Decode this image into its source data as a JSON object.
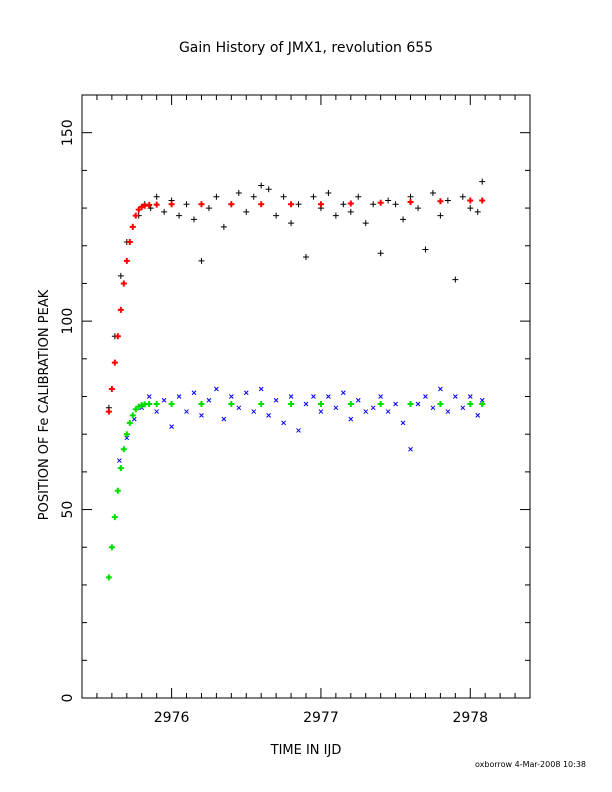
{
  "chart_data": {
    "type": "scatter",
    "title": "Gain History of JMX1, revolution 655",
    "xlabel": "TIME IN IJD",
    "ylabel": "POSITION OF Fe CALIBRATION PEAK",
    "xlim": [
      2975.4,
      2978.4
    ],
    "ylim": [
      0,
      160
    ],
    "xticks": [
      "2976",
      "2977",
      "2978"
    ],
    "yticks": [
      "0",
      "50",
      "100",
      "150"
    ],
    "grid": false,
    "legend": "none",
    "series": [
      {
        "marker": "plus",
        "color": "#000000",
        "x": [
          2975.58,
          2975.62,
          2975.66,
          2975.7,
          2975.74,
          2975.78,
          2975.82,
          2975.86,
          2975.9,
          2975.95,
          2976.0,
          2976.05,
          2976.1,
          2976.15,
          2976.2,
          2976.25,
          2976.3,
          2976.35,
          2976.4,
          2976.45,
          2976.5,
          2976.55,
          2976.6,
          2976.65,
          2976.7,
          2976.75,
          2976.8,
          2976.85,
          2976.9,
          2976.95,
          2977.0,
          2977.05,
          2977.1,
          2977.15,
          2977.2,
          2977.25,
          2977.3,
          2977.35,
          2977.4,
          2977.45,
          2977.5,
          2977.55,
          2977.6,
          2977.65,
          2977.7,
          2977.75,
          2977.8,
          2977.85,
          2977.9,
          2977.95,
          2978.0,
          2978.05,
          2978.08
        ],
        "y": [
          77,
          96,
          112,
          121,
          125,
          128,
          131,
          130,
          133,
          129,
          132,
          128,
          131,
          127,
          116,
          130,
          133,
          125,
          131,
          134,
          129,
          133,
          136,
          135,
          128,
          133,
          126,
          131,
          117,
          133,
          130,
          134,
          128,
          131,
          129,
          133,
          126,
          131,
          118,
          132,
          131,
          127,
          133,
          130,
          119,
          134,
          128,
          132,
          111,
          133,
          130,
          129,
          137
        ]
      },
      {
        "marker": "plus",
        "color": "#ff0000",
        "x": [
          2975.58,
          2975.6,
          2975.62,
          2975.64,
          2975.66,
          2975.68,
          2975.7,
          2975.72,
          2975.74,
          2975.76,
          2975.78,
          2975.8,
          2975.82,
          2975.85,
          2975.9,
          2976.0,
          2976.2,
          2976.4,
          2976.6,
          2976.8,
          2977.0,
          2977.2,
          2977.4,
          2977.6,
          2977.8,
          2978.0,
          2978.08
        ],
        "y": [
          76,
          82,
          89,
          96,
          103,
          110,
          116,
          121,
          125,
          128,
          129.6,
          130.3,
          130.6,
          130.8,
          130.9,
          131,
          131,
          131,
          131,
          131,
          131,
          131.2,
          131.4,
          131.6,
          131.8,
          132,
          132
        ]
      },
      {
        "marker": "cross",
        "color": "#0000ff",
        "x": [
          2975.65,
          2975.7,
          2975.75,
          2975.8,
          2975.85,
          2975.9,
          2975.95,
          2976.0,
          2976.05,
          2976.1,
          2976.15,
          2976.2,
          2976.25,
          2976.3,
          2976.35,
          2976.4,
          2976.45,
          2976.5,
          2976.55,
          2976.6,
          2976.65,
          2976.7,
          2976.75,
          2976.8,
          2976.85,
          2976.9,
          2976.95,
          2977.0,
          2977.05,
          2977.1,
          2977.15,
          2977.2,
          2977.25,
          2977.3,
          2977.35,
          2977.4,
          2977.45,
          2977.5,
          2977.55,
          2977.6,
          2977.65,
          2977.7,
          2977.75,
          2977.8,
          2977.85,
          2977.9,
          2977.95,
          2978.0,
          2978.05,
          2978.08
        ],
        "y": [
          63,
          69,
          74,
          77,
          80,
          76,
          79,
          72,
          80,
          76,
          81,
          75,
          79,
          82,
          74,
          80,
          77,
          81,
          76,
          82,
          75,
          79,
          73,
          80,
          71,
          78,
          80,
          76,
          80,
          77,
          81,
          74,
          79,
          76,
          77,
          80,
          76,
          78,
          73,
          66,
          78,
          80,
          77,
          82,
          76,
          80,
          77,
          80,
          75,
          79
        ]
      },
      {
        "marker": "plus",
        "color": "#00dd00",
        "x": [
          2975.58,
          2975.6,
          2975.62,
          2975.64,
          2975.66,
          2975.68,
          2975.7,
          2975.72,
          2975.74,
          2975.76,
          2975.78,
          2975.8,
          2975.82,
          2975.85,
          2975.9,
          2976.0,
          2976.2,
          2976.4,
          2976.6,
          2976.8,
          2977.0,
          2977.2,
          2977.4,
          2977.6,
          2977.8,
          2978.0,
          2978.08
        ],
        "y": [
          32,
          40,
          48,
          55,
          61,
          66,
          70,
          73,
          75,
          76.6,
          77.3,
          77.7,
          77.9,
          78,
          78,
          78,
          78,
          78,
          78,
          78,
          78,
          78,
          78,
          78,
          78,
          78,
          78
        ]
      }
    ]
  },
  "footer": "oxborrow 4-Mar-2008 10:38"
}
